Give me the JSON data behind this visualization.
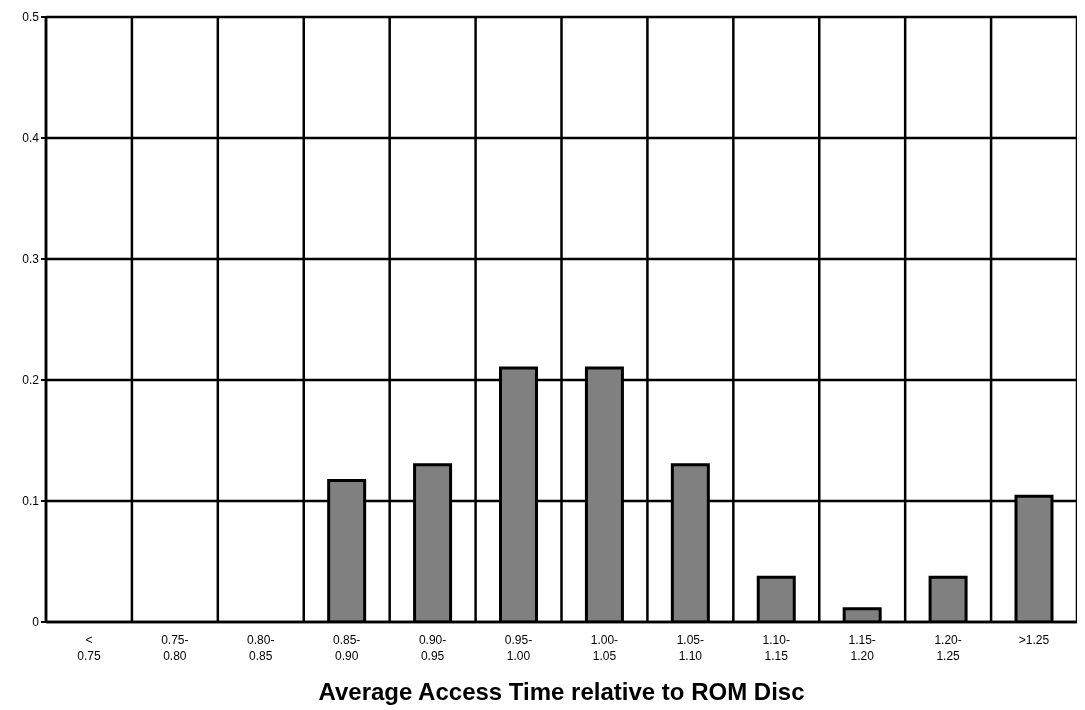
{
  "chart_data": {
    "type": "bar",
    "xlabel": "Average Access Time relative to ROM Disc",
    "categories": [
      "< 0.75",
      "0.75-0.80",
      "0.80-0.85",
      "0.85-0.90",
      "0.90-0.95",
      "0.95-1.00",
      "1.00-1.05",
      "1.05-1.10",
      "1.10-1.15",
      "1.15-1.20",
      "1.20-1.25",
      ">1.25"
    ],
    "values": [
      0,
      0,
      0,
      0.117,
      0.13,
      0.21,
      0.21,
      0.13,
      0.037,
      0.011,
      0.037,
      0.104
    ],
    "color": "#808080",
    "ylim": [
      0,
      0.5
    ],
    "yticks": [
      0,
      0.1,
      0.2,
      0.3,
      0.4,
      0.5
    ],
    "grid": true
  }
}
